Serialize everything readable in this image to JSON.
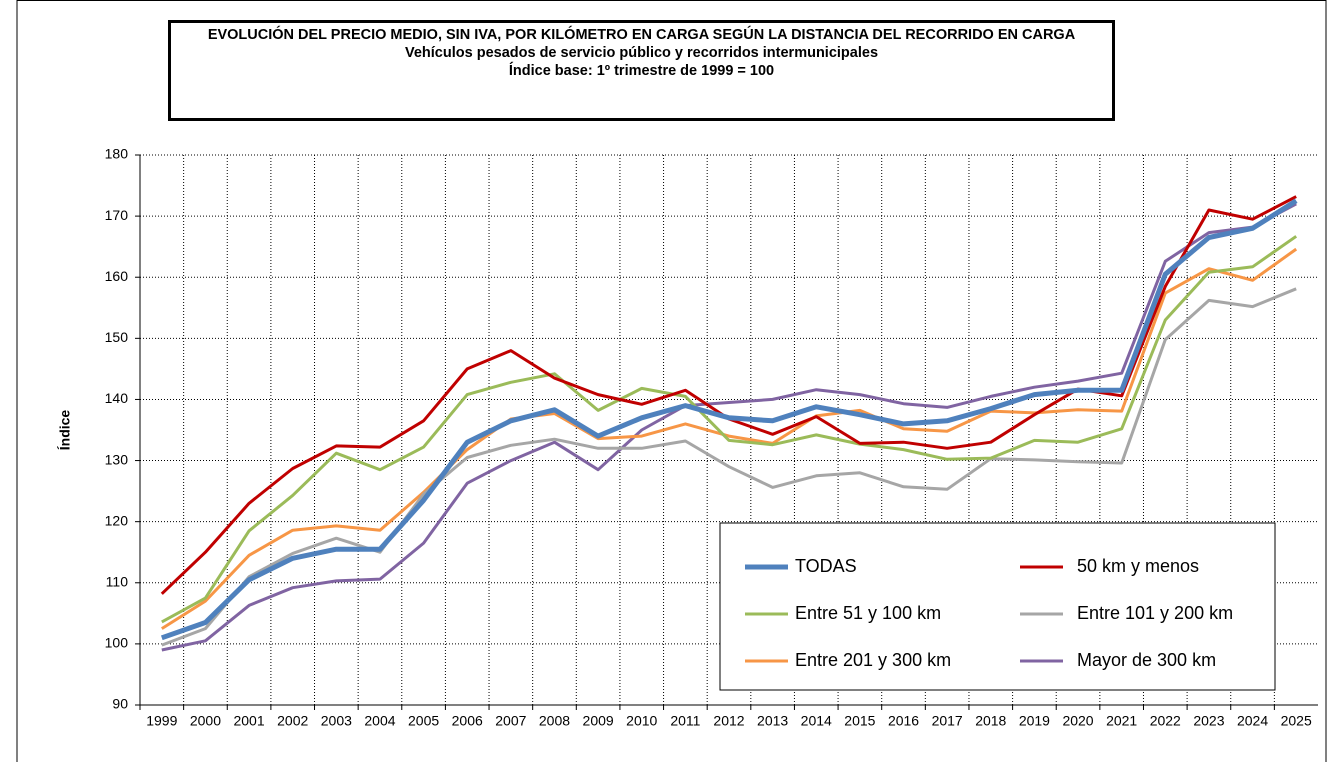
{
  "chart_data": {
    "type": "line",
    "title": "EVOLUCIÓN DEL PRECIO MEDIO, SIN IVA, POR KILÓMETRO EN CARGA SEGÚN LA DISTANCIA DEL RECORRIDO EN CARGA",
    "subtitle": [
      "Vehículos pesados de servicio público y recorridos intermunicipales",
      "Índice base: 1º trimestre de 1999 = 100"
    ],
    "y_label": "Índice",
    "categories": [
      "1999",
      "2000",
      "2001",
      "2002",
      "2003",
      "2004",
      "2005",
      "2006",
      "2007",
      "2008",
      "2009",
      "2010",
      "2011",
      "2012",
      "2013",
      "2014",
      "2015",
      "2016",
      "2017",
      "2018",
      "2019",
      "2020",
      "2021",
      "2022",
      "2023",
      "2024",
      "2025"
    ],
    "ylim": [
      90,
      180
    ],
    "yticks": [
      90,
      100,
      110,
      120,
      130,
      140,
      150,
      160,
      170,
      180
    ],
    "grid": true,
    "legend": "lower right",
    "series": [
      {
        "name": "TODAS",
        "color": "#4f81bd",
        "values": [
          101,
          103.5,
          110.5,
          114,
          115.5,
          115.5,
          123.5,
          133,
          136.5,
          138.3,
          134,
          137,
          139,
          137,
          136.5,
          138.8,
          137.5,
          136,
          136.5,
          138.5,
          140.8,
          141.5,
          141.5,
          160.5,
          166.5,
          168,
          172.5
        ]
      },
      {
        "name": "50 km y menos",
        "color": "#c00000",
        "values": [
          108.2,
          115,
          123,
          128.7,
          132.4,
          132.2,
          136.5,
          145,
          148,
          143.5,
          140.8,
          139.2,
          141.5,
          136.8,
          134.3,
          137.2,
          132.8,
          133,
          132,
          133,
          137.5,
          141.7,
          140.6,
          158.5,
          171,
          169.5,
          173.2
        ]
      },
      {
        "name": "Entre 51 y 100 km",
        "color": "#9bbb59",
        "values": [
          103.6,
          107.5,
          118.5,
          124.3,
          131.2,
          128.5,
          132.2,
          140.8,
          142.8,
          144.2,
          138.2,
          141.8,
          140.5,
          133.3,
          132.6,
          134.2,
          132.7,
          131.8,
          130.2,
          130.4,
          133.3,
          133,
          135.2,
          153,
          160.8,
          161.7,
          166.7
        ]
      },
      {
        "name": "Entre 101 y 200 km",
        "color": "#a6a6a6",
        "values": [
          99.8,
          102.5,
          111,
          114.8,
          117.3,
          115,
          124.5,
          130.5,
          132.5,
          133.5,
          132,
          132,
          133.2,
          129,
          125.6,
          127.5,
          128,
          125.7,
          125.3,
          130.3,
          130.1,
          129.8,
          129.6,
          149.8,
          156.2,
          155.2,
          158.1
        ]
      },
      {
        "name": "Entre 201 y 300 km",
        "color": "#f79646",
        "values": [
          102.5,
          107,
          114.5,
          118.6,
          119.3,
          118.6,
          124.8,
          131.8,
          136.8,
          137.7,
          133.6,
          134,
          136,
          134,
          132.8,
          137.3,
          138.2,
          135.2,
          134.8,
          138.1,
          137.8,
          138.3,
          138.1,
          157.4,
          161.4,
          159.5,
          164.6
        ]
      },
      {
        "name": "Mayor de 300 km",
        "color": "#8064a2",
        "values": [
          99,
          100.5,
          106.3,
          109.2,
          110.3,
          110.6,
          116.5,
          126.3,
          130,
          133,
          128.5,
          135,
          139,
          139.5,
          140,
          141.6,
          140.8,
          139.3,
          138.7,
          140.5,
          142,
          143,
          144.3,
          162.6,
          167.3,
          168.2,
          172
        ]
      }
    ]
  }
}
